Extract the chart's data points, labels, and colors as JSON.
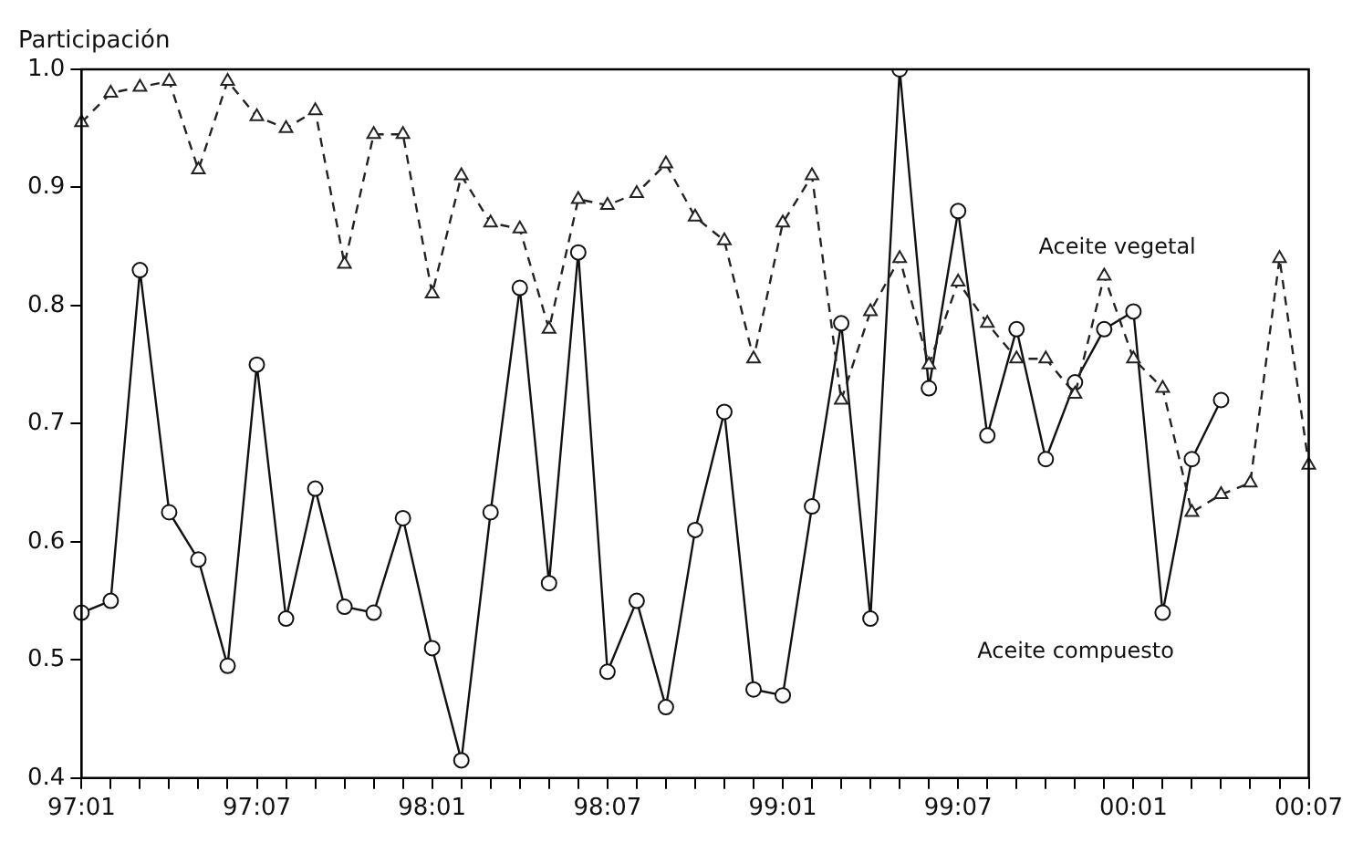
{
  "chart_data": {
    "type": "line",
    "ylabel": "Participación",
    "categories": [
      "97:01",
      null,
      null,
      null,
      null,
      null,
      "97:07",
      null,
      null,
      null,
      null,
      null,
      "98:01",
      null,
      null,
      null,
      null,
      null,
      "98:07",
      null,
      null,
      null,
      null,
      null,
      "99:01",
      null,
      null,
      null,
      null,
      null,
      "99:07",
      null,
      null,
      null,
      null,
      null,
      "00:01",
      null,
      null,
      null,
      null,
      null,
      "00:07"
    ],
    "series": [
      {
        "name": "Aceite vegetal",
        "color": "#222222",
        "marker": "triangle",
        "line_style": "dashed",
        "values": [
          0.955,
          0.98,
          0.985,
          0.99,
          0.915,
          0.99,
          0.96,
          0.95,
          0.965,
          0.835,
          0.945,
          0.945,
          0.81,
          0.91,
          0.87,
          0.865,
          0.78,
          0.89,
          0.885,
          0.895,
          0.92,
          0.875,
          0.855,
          0.755,
          0.87,
          0.91,
          0.72,
          0.795,
          0.84,
          0.75,
          0.82,
          0.785,
          0.755,
          0.755,
          0.725,
          0.825,
          0.755,
          0.73,
          0.625,
          0.64,
          0.65,
          0.84,
          0.665
        ]
      },
      {
        "name": "Aceite compuesto",
        "color": "#111111",
        "marker": "circle",
        "line_style": "solid",
        "values": [
          0.54,
          0.55,
          0.83,
          0.625,
          0.585,
          0.495,
          0.75,
          0.535,
          0.645,
          0.545,
          0.54,
          0.62,
          0.51,
          0.415,
          0.625,
          0.815,
          0.565,
          0.845,
          0.49,
          0.55,
          0.46,
          0.61,
          0.71,
          0.475,
          0.47,
          0.63,
          0.785,
          0.535,
          1.0,
          0.73,
          0.88,
          0.69,
          0.78,
          0.67,
          0.735,
          0.78,
          0.795,
          0.54,
          0.67,
          0.72,
          null,
          null,
          null
        ]
      }
    ],
    "ylim": [
      0.4,
      1.0
    ],
    "yticks": [
      0.4,
      0.5,
      0.6,
      0.7,
      0.8,
      0.9,
      {
        "value": 1.0,
        "label": "1.0"
      }
    ],
    "grid": false,
    "legend": false
  }
}
